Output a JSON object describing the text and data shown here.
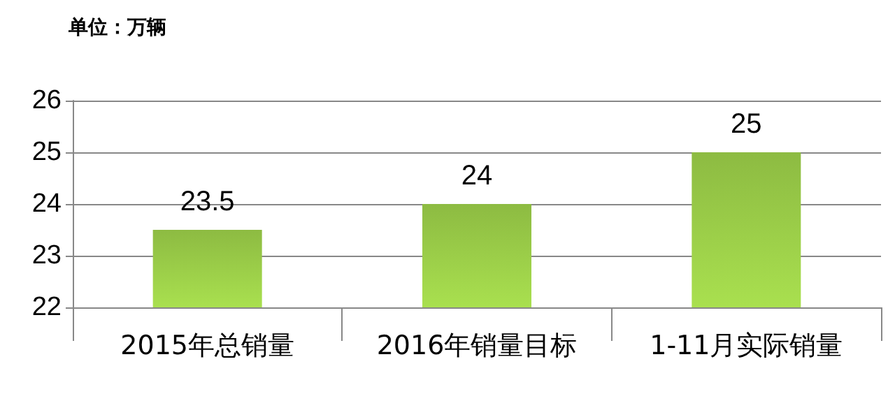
{
  "chart_data": {
    "type": "bar",
    "title": "单位：万辆",
    "categories": [
      "2015年总销量",
      "2016年销量目标",
      "1-11月实际销量"
    ],
    "values": [
      23.5,
      24,
      25
    ],
    "color": "#8dbb42",
    "ylim": [
      22,
      26
    ],
    "yticks": [
      22,
      23,
      24,
      25,
      26
    ],
    "grid": "y",
    "data_labels": true
  }
}
